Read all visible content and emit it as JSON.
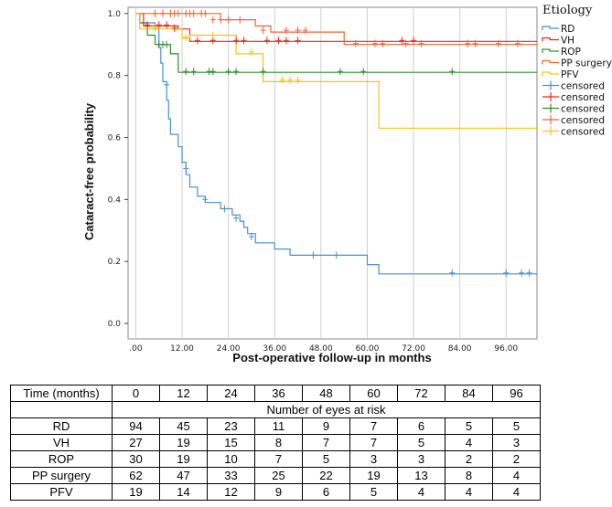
{
  "chart_data": {
    "type": "line",
    "subtype": "kaplan-meier-step",
    "xlabel": "Post-operative follow-up in months",
    "ylabel": "Cataract-free probability",
    "xlim": [
      -2,
      104
    ],
    "ylim": [
      -0.05,
      1.02
    ],
    "x_ticks": [
      0,
      12,
      24,
      36,
      48,
      60,
      72,
      84,
      96
    ],
    "x_tick_labels": [
      ".00",
      "12.00",
      "24.00",
      "36.00",
      "48.00",
      "60.00",
      "72.00",
      "84.00",
      "96.00"
    ],
    "y_ticks": [
      0,
      0.2,
      0.4,
      0.6,
      0.8,
      1.0
    ],
    "y_tick_labels": [
      "0.0",
      "0.2",
      "0.4",
      "0.6",
      "0.8",
      "1.0"
    ],
    "gridlines": "vertical",
    "legend_title": "Etiology",
    "legend_placement": "top-right",
    "series": [
      {
        "name": "RD",
        "color": "#4a8fce",
        "censored_label": "censored",
        "steps": [
          [
            0,
            1.0
          ],
          [
            1,
            0.97
          ],
          [
            5,
            0.95
          ],
          [
            6,
            0.89
          ],
          [
            6.5,
            0.84
          ],
          [
            7,
            0.78
          ],
          [
            8,
            0.72
          ],
          [
            8.5,
            0.66
          ],
          [
            9,
            0.61
          ],
          [
            11,
            0.57
          ],
          [
            12,
            0.52
          ],
          [
            13,
            0.48
          ],
          [
            14,
            0.44
          ],
          [
            16,
            0.41
          ],
          [
            18,
            0.39
          ],
          [
            22,
            0.37
          ],
          [
            25,
            0.35
          ],
          [
            27,
            0.33
          ],
          [
            28,
            0.31
          ],
          [
            29,
            0.29
          ],
          [
            31,
            0.26
          ],
          [
            36,
            0.24
          ],
          [
            40,
            0.22
          ],
          [
            60,
            0.19
          ],
          [
            63,
            0.16
          ],
          [
            104,
            0.16
          ]
        ],
        "censored": [
          [
            8,
            0.77
          ],
          [
            13,
            0.5
          ],
          [
            18,
            0.4
          ],
          [
            23,
            0.37
          ],
          [
            26,
            0.34
          ],
          [
            30,
            0.28
          ],
          [
            46,
            0.22
          ],
          [
            52,
            0.22
          ],
          [
            82,
            0.163
          ],
          [
            96,
            0.163
          ],
          [
            100,
            0.163
          ],
          [
            102,
            0.163
          ]
        ]
      },
      {
        "name": "VH",
        "color": "#e8261f",
        "censored_label": "censored",
        "steps": [
          [
            0,
            1.0
          ],
          [
            2,
            0.96
          ],
          [
            11,
            0.95
          ],
          [
            14,
            0.91
          ],
          [
            104,
            0.91
          ]
        ],
        "censored": [
          [
            3,
            0.963
          ],
          [
            6,
            0.963
          ],
          [
            8,
            0.963
          ],
          [
            10,
            0.953
          ],
          [
            16,
            0.913
          ],
          [
            20,
            0.913
          ],
          [
            26,
            0.913
          ],
          [
            28,
            0.913
          ],
          [
            34,
            0.913
          ],
          [
            37,
            0.913
          ],
          [
            39,
            0.913
          ],
          [
            42,
            0.913
          ],
          [
            69,
            0.913
          ],
          [
            72,
            0.913
          ]
        ]
      },
      {
        "name": "ROP",
        "color": "#2f8f2f",
        "censored_label": "censored",
        "steps": [
          [
            0,
            1.0
          ],
          [
            1,
            0.97
          ],
          [
            3,
            0.93
          ],
          [
            5,
            0.9
          ],
          [
            9,
            0.87
          ],
          [
            11,
            0.81
          ],
          [
            104,
            0.81
          ]
        ],
        "censored": [
          [
            6,
            0.9
          ],
          [
            7,
            0.9
          ],
          [
            8,
            0.9
          ],
          [
            13,
            0.813
          ],
          [
            15,
            0.813
          ],
          [
            19,
            0.813
          ],
          [
            20,
            0.813
          ],
          [
            24,
            0.813
          ],
          [
            26,
            0.813
          ],
          [
            33,
            0.813
          ],
          [
            53,
            0.813
          ],
          [
            59,
            0.813
          ],
          [
            82,
            0.813
          ]
        ]
      },
      {
        "name": "PP surgery",
        "color": "#f3623a",
        "censored_label": "censored",
        "steps": [
          [
            0,
            1.0
          ],
          [
            22,
            0.98
          ],
          [
            31,
            0.96
          ],
          [
            35,
            0.94
          ],
          [
            54,
            0.9
          ],
          [
            104,
            0.9
          ]
        ],
        "censored": [
          [
            5,
            1.0
          ],
          [
            7,
            1.0
          ],
          [
            9,
            1.0
          ],
          [
            10,
            1.0
          ],
          [
            11,
            1.0
          ],
          [
            13,
            1.0
          ],
          [
            14,
            1.0
          ],
          [
            15,
            1.0
          ],
          [
            17,
            1.0
          ],
          [
            18,
            1.0
          ],
          [
            20,
            0.98
          ],
          [
            22,
            0.98
          ],
          [
            24,
            0.98
          ],
          [
            27,
            0.98
          ],
          [
            33,
            0.946
          ],
          [
            39,
            0.946
          ],
          [
            42,
            0.946
          ],
          [
            44,
            0.946
          ],
          [
            57,
            0.903
          ],
          [
            62,
            0.903
          ],
          [
            64,
            0.903
          ],
          [
            70,
            0.903
          ],
          [
            74,
            0.903
          ],
          [
            86,
            0.903
          ],
          [
            88,
            0.903
          ],
          [
            94,
            0.903
          ],
          [
            99,
            0.903
          ]
        ]
      },
      {
        "name": "PFV",
        "color": "#f5c316",
        "censored_label": "censored",
        "steps": [
          [
            0,
            1.0
          ],
          [
            1,
            0.95
          ],
          [
            12,
            0.92
          ],
          [
            14,
            0.93
          ],
          [
            26,
            0.87
          ],
          [
            33,
            0.78
          ],
          [
            63,
            0.63
          ],
          [
            104,
            0.63
          ]
        ],
        "censored": [
          [
            5,
            0.953
          ],
          [
            13,
            0.923
          ],
          [
            20,
            0.93
          ],
          [
            30,
            0.876
          ],
          [
            38,
            0.785
          ],
          [
            40,
            0.785
          ],
          [
            42,
            0.785
          ]
        ]
      }
    ],
    "risk_table": {
      "header_label": "Time (months)",
      "times": [
        "0",
        "12",
        "24",
        "36",
        "48",
        "60",
        "72",
        "84",
        "96"
      ],
      "subheader": "Number of eyes at risk",
      "rows": [
        {
          "label": "RD",
          "values": [
            "94",
            "45",
            "23",
            "11",
            "9",
            "7",
            "6",
            "5",
            "5"
          ]
        },
        {
          "label": "VH",
          "values": [
            "27",
            "19",
            "15",
            "8",
            "7",
            "7",
            "5",
            "4",
            "3"
          ]
        },
        {
          "label": "ROP",
          "values": [
            "30",
            "19",
            "10",
            "7",
            "5",
            "3",
            "3",
            "2",
            "2"
          ]
        },
        {
          "label": "PP surgery",
          "values": [
            "62",
            "47",
            "33",
            "25",
            "22",
            "19",
            "13",
            "8",
            "4"
          ]
        },
        {
          "label": "PFV",
          "values": [
            "19",
            "14",
            "12",
            "9",
            "6",
            "5",
            "4",
            "4",
            "4"
          ]
        }
      ]
    }
  }
}
